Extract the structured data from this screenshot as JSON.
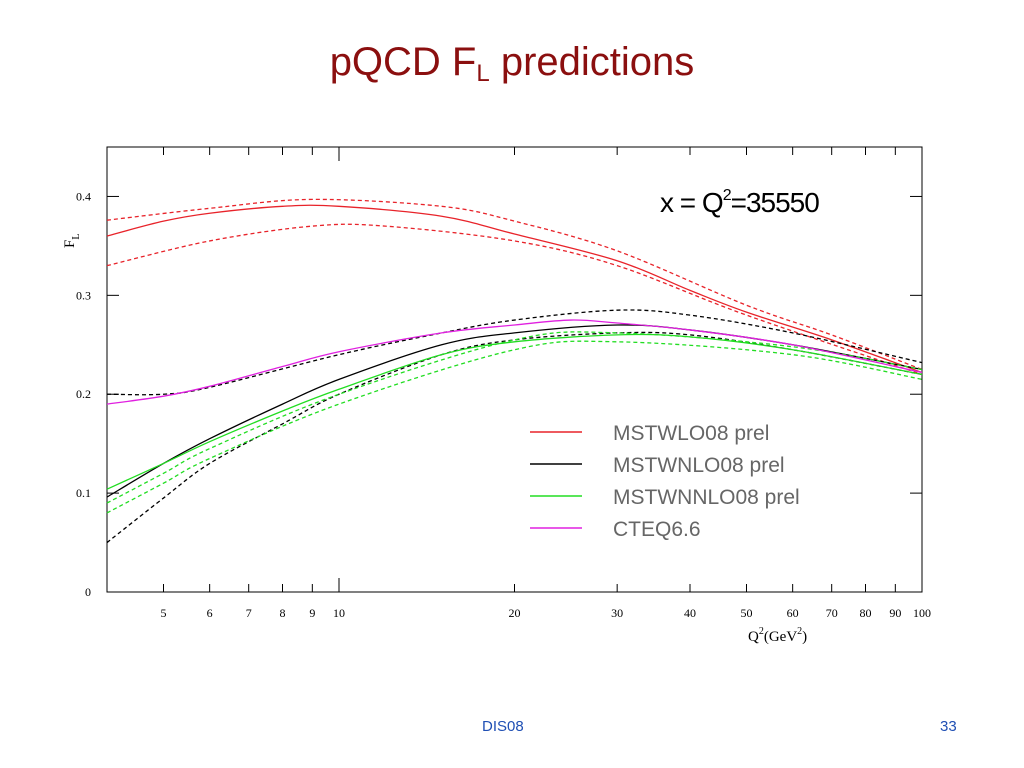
{
  "slide": {
    "title_main": "pQCD F",
    "title_sub": "L",
    "title_rest": " predictions",
    "footer_left": "DIS08",
    "page_number": "33"
  },
  "chart_data": {
    "type": "line",
    "annotation": {
      "prefix": "x =  Q",
      "sup": "2",
      "suffix": "=35550"
    },
    "ylabel": "F",
    "ylabel_sub": "L",
    "xlabel": "Q",
    "xlabel_sup1": "2",
    "xlabel_mid": "(GeV",
    "xlabel_sup2": "2",
    "xlabel_end": ")",
    "xscale": "log",
    "xlim": [
      4,
      100
    ],
    "ylim": [
      0,
      0.45
    ],
    "xticks": [
      5,
      6,
      7,
      8,
      9,
      10,
      20,
      30,
      40,
      50,
      60,
      70,
      80,
      90,
      100
    ],
    "xtick_labels": [
      "5",
      "6",
      "7",
      "8",
      "9",
      "10",
      "20",
      "30",
      "40",
      "50",
      "60",
      "70",
      "80",
      "90",
      "100"
    ],
    "yticks": [
      0,
      0.1,
      0.2,
      0.3,
      0.4
    ],
    "ytick_labels": [
      "0",
      "0.1",
      "0.2",
      "0.3",
      "0.4"
    ],
    "legend_position": "bottom-right",
    "legend": [
      {
        "label": "MSTWLO08 prel",
        "color": "#e8232a"
      },
      {
        "label": "MSTWNLO08 prel",
        "color": "#000000"
      },
      {
        "label": "MSTWNNLO08 prel",
        "color": "#22dd22"
      },
      {
        "label": "CTEQ6.6",
        "color": "#e020e0"
      }
    ],
    "series": [
      {
        "name": "MSTWLO08 prel",
        "color": "#e8232a",
        "dash": false,
        "x": [
          4,
          5,
          6,
          8,
          10,
          15,
          20,
          30,
          40,
          50,
          70,
          100
        ],
        "y": [
          0.36,
          0.375,
          0.383,
          0.39,
          0.39,
          0.38,
          0.362,
          0.335,
          0.305,
          0.283,
          0.255,
          0.222
        ]
      },
      {
        "name": "MSTWLO08 prel upper",
        "color": "#e8232a",
        "dash": true,
        "x": [
          4,
          6,
          9,
          15,
          20,
          30,
          50,
          70,
          100
        ],
        "y": [
          0.376,
          0.388,
          0.397,
          0.39,
          0.375,
          0.345,
          0.29,
          0.26,
          0.225
        ]
      },
      {
        "name": "MSTWLO08 prel lower",
        "color": "#e8232a",
        "dash": true,
        "x": [
          4,
          6,
          9,
          12,
          20,
          30,
          50,
          100
        ],
        "y": [
          0.33,
          0.355,
          0.37,
          0.37,
          0.355,
          0.33,
          0.28,
          0.22
        ]
      },
      {
        "name": "MSTWNLO08 prel",
        "color": "#000000",
        "dash": false,
        "x": [
          4,
          5,
          6,
          8,
          10,
          15,
          20,
          30,
          40,
          60,
          100
        ],
        "y": [
          0.096,
          0.13,
          0.155,
          0.19,
          0.215,
          0.25,
          0.262,
          0.27,
          0.265,
          0.25,
          0.225
        ]
      },
      {
        "name": "MSTWNLO08 prel upper",
        "color": "#000000",
        "dash": true,
        "x": [
          4,
          5,
          6,
          10,
          15,
          20,
          30,
          40,
          60,
          100
        ],
        "y": [
          0.2,
          0.2,
          0.207,
          0.24,
          0.262,
          0.275,
          0.285,
          0.28,
          0.262,
          0.232
        ]
      },
      {
        "name": "MSTWNLO08 prel lower",
        "color": "#000000",
        "dash": true,
        "x": [
          4,
          5,
          6,
          8,
          10,
          15,
          20,
          30,
          40,
          60,
          100
        ],
        "y": [
          0.05,
          0.095,
          0.13,
          0.17,
          0.2,
          0.24,
          0.255,
          0.262,
          0.26,
          0.245,
          0.22
        ]
      },
      {
        "name": "MSTWNNLO08 prel",
        "color": "#22dd22",
        "dash": false,
        "x": [
          4,
          5,
          6,
          8,
          10,
          15,
          20,
          30,
          40,
          60,
          100
        ],
        "y": [
          0.104,
          0.13,
          0.152,
          0.183,
          0.205,
          0.24,
          0.253,
          0.26,
          0.258,
          0.245,
          0.22
        ]
      },
      {
        "name": "MSTWNNLO08 prel upper",
        "color": "#22dd22",
        "dash": true,
        "x": [
          4,
          5,
          6,
          10,
          20,
          30,
          60,
          100
        ],
        "y": [
          0.09,
          0.12,
          0.145,
          0.2,
          0.255,
          0.262,
          0.248,
          0.225
        ]
      },
      {
        "name": "MSTWNNLO08 prel lower",
        "color": "#22dd22",
        "dash": true,
        "x": [
          4,
          5,
          6,
          10,
          20,
          30,
          60,
          100
        ],
        "y": [
          0.08,
          0.11,
          0.135,
          0.19,
          0.245,
          0.253,
          0.24,
          0.215
        ]
      },
      {
        "name": "CTEQ6.6",
        "color": "#e020e0",
        "dash": false,
        "x": [
          4,
          5,
          6,
          8,
          10,
          15,
          20,
          25,
          30,
          40,
          60,
          100
        ],
        "y": [
          0.19,
          0.198,
          0.208,
          0.228,
          0.243,
          0.262,
          0.27,
          0.275,
          0.272,
          0.265,
          0.25,
          0.222
        ]
      }
    ]
  }
}
